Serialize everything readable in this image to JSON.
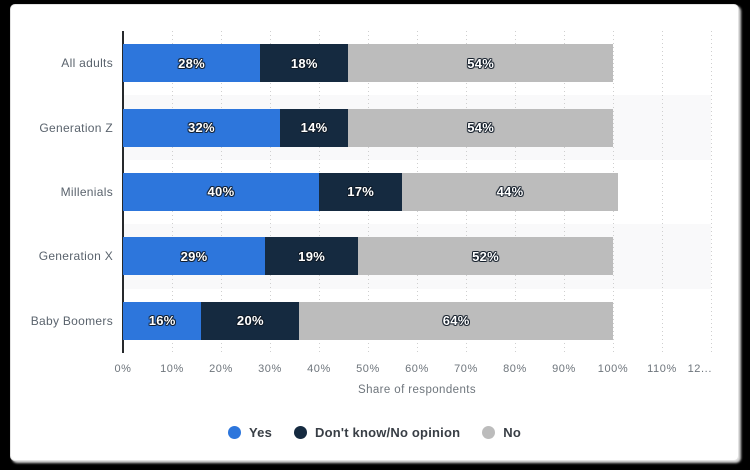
{
  "frame": {
    "background_color": "#000000",
    "card_background_color": "#ffffff"
  },
  "chart_data": {
    "type": "bar",
    "orientation": "horizontal",
    "stacked": true,
    "title": "",
    "xlabel": "Share of respondents",
    "ylabel": "",
    "categories": [
      "All adults",
      "Generation Z",
      "Millenials",
      "Generation X",
      "Baby Boomers"
    ],
    "series": [
      {
        "name": "Yes",
        "color": "#2d76dc",
        "values": [
          28,
          32,
          40,
          29,
          16
        ]
      },
      {
        "name": "Don't know/No opinion",
        "color": "#152a40",
        "values": [
          18,
          14,
          17,
          19,
          20
        ]
      },
      {
        "name": "No",
        "color": "#bcbcbc",
        "values": [
          54,
          54,
          44,
          52,
          64
        ]
      }
    ],
    "value_suffix": "%",
    "xlim": [
      0,
      120
    ],
    "x_tick_step": 10,
    "x_ticks": [
      "0%",
      "10%",
      "20%",
      "30%",
      "40%",
      "50%",
      "60%",
      "70%",
      "80%",
      "90%",
      "100%",
      "110%",
      "12..."
    ],
    "grid": "dotted-vertical",
    "row_stripe_color": "#f9f9fa",
    "striped_row_indexes": [
      1,
      3
    ],
    "legend_position": "bottom-center",
    "bar_label_color": "#ffffff",
    "axis_line_color": "#26292c",
    "tick_label_color": "#6e757c",
    "category_label_color": "#5a636d"
  }
}
